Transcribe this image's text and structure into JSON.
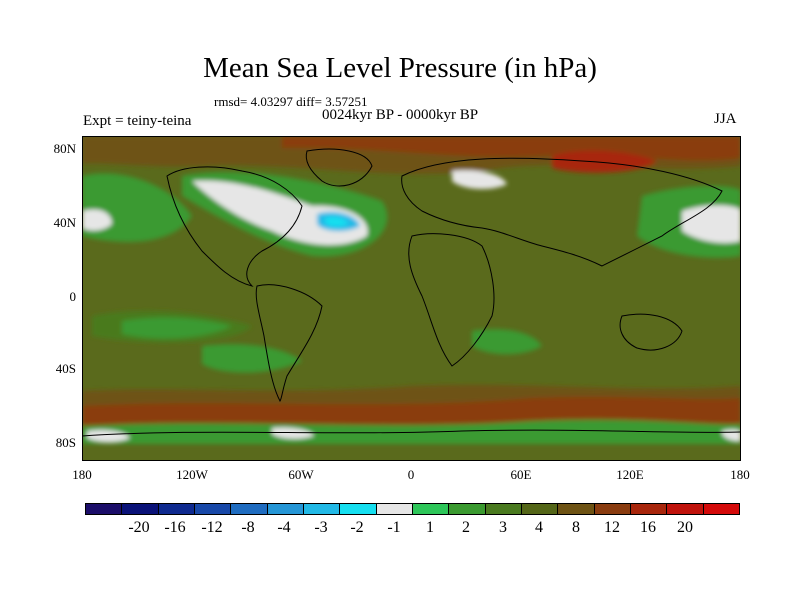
{
  "title": "Mean Sea Level Pressure (in hPa)",
  "stats_text": "rmsd= 4.03297 diff= 3.57251",
  "period_text": "0024kyr BP - 0000kyr BP",
  "expt_text": "Expt = teiny-teina",
  "season_text": "JJA",
  "lat_ticks": [
    "80N",
    "40N",
    "0",
    "40S",
    "80S"
  ],
  "lon_ticks": [
    "180",
    "120W",
    "60W",
    "0",
    "60E",
    "120E",
    "180"
  ],
  "colorbar": {
    "colors": [
      "#1b0d69",
      "#0a1278",
      "#0f2a8f",
      "#1848a8",
      "#1f6cc0",
      "#2596d6",
      "#22b9e6",
      "#16dff0",
      "#e6e6e6",
      "#2dc659",
      "#3b9a30",
      "#4a7a1f",
      "#546618",
      "#6e5314",
      "#8a3c10",
      "#a8260c",
      "#c0130c",
      "#d40a0a"
    ],
    "labels": [
      "-20",
      "-16",
      "-12",
      "-8",
      "-4",
      "-3",
      "-2",
      "-1",
      "1",
      "2",
      "3",
      "4",
      "8",
      "12",
      "16",
      "20"
    ]
  },
  "map_colors": {
    "base": "#5a6a1c",
    "lowland": "#4a7a1f",
    "green": "#3b9a30",
    "bright_green": "#2dc659",
    "white": "#e6e6e6",
    "cyan": "#22b9e6",
    "cyan_light": "#16dff0",
    "brown": "#6e5314",
    "red_brown": "#8a3c10",
    "red": "#a8260c"
  }
}
